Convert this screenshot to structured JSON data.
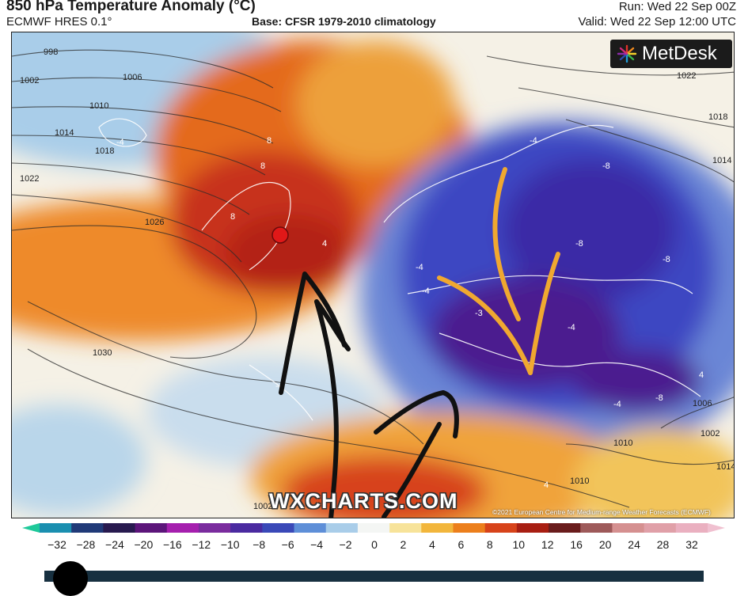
{
  "header": {
    "title": "850 hPa Temperature Anomaly (°C)",
    "model": "ECMWF HRES 0.1°",
    "base": "Base: CFSR 1979-2010 climatology",
    "run": "Run: Wed 22 Sep 00Z",
    "valid": "Valid: Wed 22 Sep 12:00 UTC"
  },
  "logo": {
    "text": "MetDesk"
  },
  "watermark": "WXCHARTS.COM",
  "credit": "©2021 European Centre for Medium-range Weather Forecasts (ECMWF)",
  "isobar_labels": [
    "998",
    "1002",
    "1006",
    "1010",
    "1014",
    "1018",
    "1022",
    "1026",
    "1030",
    "1022",
    "1018",
    "1014",
    "1006",
    "1002",
    "1010",
    "1014",
    "1010",
    "1002"
  ],
  "anomaly_labels": [
    "-4",
    "8",
    "8",
    "8",
    "-4",
    "-8",
    "-8",
    "-4",
    "-8",
    "-4",
    "-3",
    "-4",
    "4",
    "4",
    "-4",
    "-8",
    "-4",
    "4"
  ],
  "colorbar": {
    "ticks": [
      "−32",
      "−28",
      "−24",
      "−20",
      "−16",
      "−12",
      "−10",
      "−8",
      "−6",
      "−4",
      "−2",
      "0",
      "2",
      "4",
      "6",
      "8",
      "10",
      "12",
      "16",
      "20",
      "24",
      "28",
      "32"
    ],
    "colors": [
      "#1fc99a",
      "#1a8fb0",
      "#203a78",
      "#281a4f",
      "#5c157a",
      "#a51fae",
      "#7a2c9e",
      "#4a2aa0",
      "#3a49b8",
      "#5e8fd8",
      "#a9cde9",
      "#f4f6f4",
      "#f7e39a",
      "#f2b63c",
      "#ec7f1c",
      "#d7431a",
      "#a81e12",
      "#6a1c1c",
      "#9e5a5a",
      "#d59090",
      "#e0a0a8",
      "#eab0c0",
      "#f0c0d0"
    ]
  },
  "colors": {
    "cold_deep": "#4b1a8f",
    "cold": "#3d46c2",
    "cool": "#6fa0dd",
    "neutral": "#eef2f0",
    "warm": "#f2b63c",
    "hot": "#e2571a",
    "very_hot": "#b32414",
    "marker": "#e01818",
    "arrow_black": "#111111",
    "arrow_orange": "#f0a830"
  },
  "slider": {
    "value": 0
  }
}
